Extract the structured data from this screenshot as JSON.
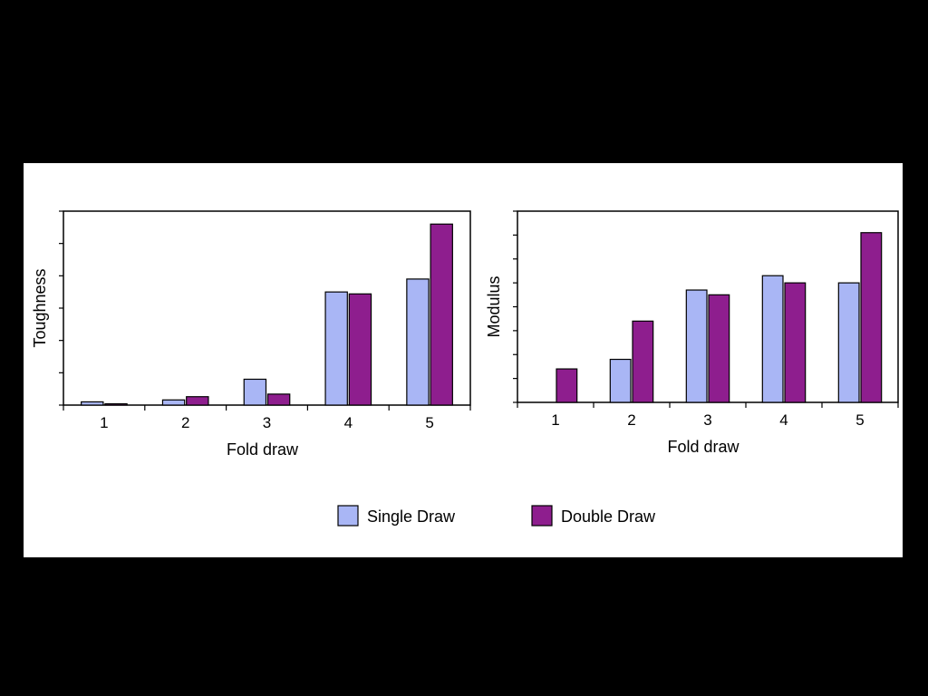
{
  "colors": {
    "single": "#a9b6f5",
    "double": "#8e1e8e",
    "axis": "#000000"
  },
  "legend": {
    "items": [
      {
        "label": "Single Draw",
        "color": "#a9b6f5"
      },
      {
        "label": "Double Draw",
        "color": "#8e1e8e"
      }
    ],
    "position": "bottom-center"
  },
  "chart_data": [
    {
      "type": "bar",
      "categories": [
        "1",
        "2",
        "3",
        "4",
        "5"
      ],
      "series": [
        {
          "name": "Single Draw",
          "values": [
            0.5,
            0.8,
            4.0,
            17.5,
            19.5
          ]
        },
        {
          "name": "Double Draw",
          "values": [
            0.2,
            1.3,
            1.7,
            17.2,
            28.0
          ]
        }
      ],
      "xlabel": "Fold draw",
      "ylabel": "Toughness",
      "ylim": [
        0,
        30
      ],
      "y_minor_ticks": 6,
      "y_tick_labels": false,
      "grid": false
    },
    {
      "type": "bar",
      "categories": [
        "1",
        "2",
        "3",
        "4",
        "5"
      ],
      "series": [
        {
          "name": "Single Draw",
          "values": [
            0,
            1.8,
            4.7,
            5.3,
            5.0
          ]
        },
        {
          "name": "Double Draw",
          "values": [
            1.4,
            3.4,
            4.5,
            5.0,
            7.1
          ]
        }
      ],
      "xlabel": "Fold draw",
      "ylabel": "Modulus",
      "ylim": [
        0,
        8
      ],
      "y_minor_ticks": 8,
      "y_tick_labels": false,
      "grid": false
    }
  ]
}
